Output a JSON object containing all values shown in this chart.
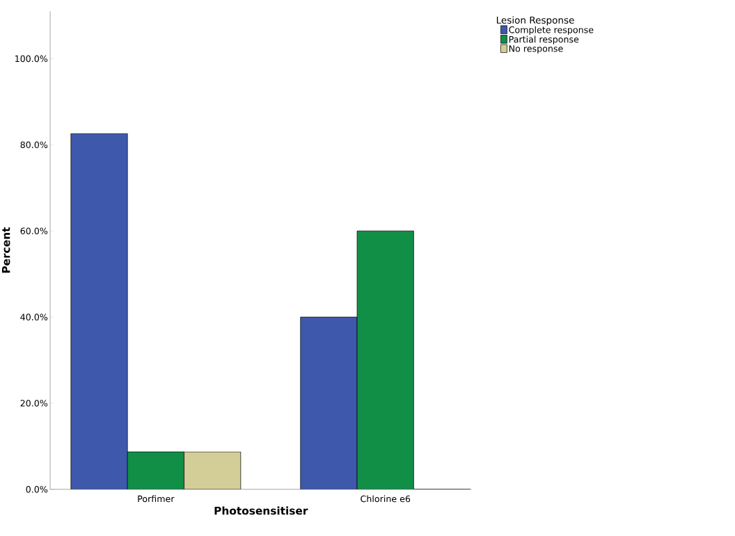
{
  "chart_data": {
    "type": "bar",
    "xlabel": "Photosensitiser",
    "ylabel": "Percent",
    "legend_title": "Lesion Response",
    "legend": "top right",
    "categories": [
      "Porfimer",
      "Chlorine e6"
    ],
    "series": [
      {
        "name": "Complete response",
        "color": "#3e58ac",
        "values": [
          82.6,
          40.0
        ]
      },
      {
        "name": "Partial response",
        "color": "#118f47",
        "values": [
          8.7,
          60.0
        ]
      },
      {
        "name": "No response",
        "color": "#d3ce97",
        "values": [
          8.7,
          0.0
        ]
      }
    ],
    "ylim": [
      0,
      111
    ],
    "yticks": [
      {
        "value": 0,
        "label": "0.0%"
      },
      {
        "value": 20,
        "label": "20.0%"
      },
      {
        "value": 40,
        "label": "40.0%"
      },
      {
        "value": 60,
        "label": "60.0%"
      },
      {
        "value": 80,
        "label": "80.0%"
      },
      {
        "value": 100,
        "label": "100.0%"
      }
    ]
  }
}
